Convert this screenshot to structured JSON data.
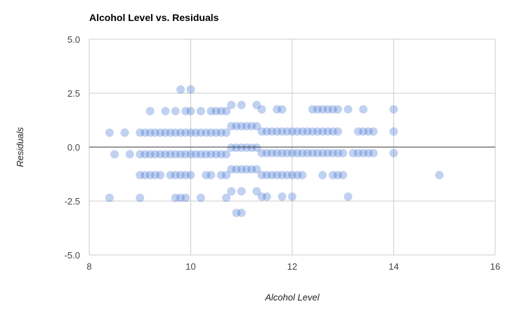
{
  "chart_data": {
    "type": "scatter",
    "title": "Alcohol Level vs. Residuals",
    "xlabel": "Alcohol Level",
    "ylabel": "Residuals",
    "xlim": [
      8,
      16
    ],
    "ylim": [
      -5,
      5
    ],
    "xticks": [
      "8",
      "10",
      "12",
      "14",
      "16"
    ],
    "yticks": [
      "5.0",
      "2.5",
      "0.0",
      "-2.5",
      "-5.0"
    ],
    "grid": true,
    "legend": "none",
    "colors": {
      "point": "#3366cc",
      "grid": "#cccccc",
      "zero_line": "#333333"
    },
    "series": [
      {
        "x_range_rows": [
          {
            "y": 0.67,
            "from": 9.0,
            "to": 10.7,
            "step": 0.1
          },
          {
            "y": 0.72,
            "from": 11.4,
            "to": 12.9,
            "step": 0.1
          },
          {
            "y": -0.33,
            "from": 9.0,
            "to": 10.7,
            "step": 0.1
          },
          {
            "y": -0.28,
            "from": 11.4,
            "to": 13.0,
            "step": 0.1
          },
          {
            "y": 0.97,
            "from": 10.8,
            "to": 11.3,
            "step": 0.1
          },
          {
            "y": -0.03,
            "from": 10.8,
            "to": 11.3,
            "step": 0.1
          },
          {
            "y": -1.03,
            "from": 10.8,
            "to": 11.3,
            "step": 0.1
          }
        ],
        "points": [
          [
            8.4,
            0.67
          ],
          [
            8.5,
            -0.33
          ],
          [
            8.7,
            0.67
          ],
          [
            8.8,
            -0.33
          ],
          [
            8.4,
            -2.35
          ],
          [
            9.0,
            -2.35
          ],
          [
            9.0,
            -1.3
          ],
          [
            9.1,
            -1.3
          ],
          [
            9.2,
            -1.3
          ],
          [
            9.3,
            -1.3
          ],
          [
            9.4,
            -1.3
          ],
          [
            9.6,
            -1.3
          ],
          [
            9.7,
            -1.3
          ],
          [
            9.8,
            -1.3
          ],
          [
            9.9,
            -1.3
          ],
          [
            10.0,
            -1.3
          ],
          [
            10.3,
            -1.3
          ],
          [
            10.4,
            -1.3
          ],
          [
            10.6,
            -1.3
          ],
          [
            10.7,
            -1.3
          ],
          [
            9.7,
            -2.35
          ],
          [
            9.8,
            -2.35
          ],
          [
            9.9,
            -2.35
          ],
          [
            10.2,
            -2.35
          ],
          [
            10.7,
            -2.35
          ],
          [
            9.2,
            1.67
          ],
          [
            9.5,
            1.67
          ],
          [
            9.7,
            1.67
          ],
          [
            9.9,
            1.67
          ],
          [
            10.0,
            1.67
          ],
          [
            10.2,
            1.67
          ],
          [
            10.4,
            1.67
          ],
          [
            10.5,
            1.67
          ],
          [
            10.6,
            1.67
          ],
          [
            10.7,
            1.67
          ],
          [
            9.8,
            2.67
          ],
          [
            10.0,
            2.67
          ],
          [
            10.8,
            1.95
          ],
          [
            11.0,
            1.95
          ],
          [
            11.3,
            1.95
          ],
          [
            11.4,
            1.75
          ],
          [
            11.7,
            1.75
          ],
          [
            11.8,
            1.75
          ],
          [
            12.4,
            1.75
          ],
          [
            12.5,
            1.75
          ],
          [
            12.6,
            1.75
          ],
          [
            12.7,
            1.75
          ],
          [
            12.8,
            1.75
          ],
          [
            12.9,
            1.75
          ],
          [
            13.1,
            1.75
          ],
          [
            13.4,
            1.75
          ],
          [
            14.0,
            1.75
          ],
          [
            10.8,
            -2.05
          ],
          [
            11.0,
            -2.05
          ],
          [
            11.3,
            -2.05
          ],
          [
            11.4,
            -2.3
          ],
          [
            11.5,
            -2.3
          ],
          [
            11.8,
            -2.3
          ],
          [
            12.0,
            -2.3
          ],
          [
            13.1,
            -2.3
          ],
          [
            10.9,
            -3.05
          ],
          [
            11.0,
            -3.05
          ],
          [
            11.4,
            -1.3
          ],
          [
            11.5,
            -1.3
          ],
          [
            11.6,
            -1.3
          ],
          [
            11.7,
            -1.3
          ],
          [
            11.8,
            -1.3
          ],
          [
            11.9,
            -1.3
          ],
          [
            12.0,
            -1.3
          ],
          [
            12.1,
            -1.3
          ],
          [
            12.2,
            -1.3
          ],
          [
            12.6,
            -1.3
          ],
          [
            12.8,
            -1.3
          ],
          [
            12.9,
            -1.3
          ],
          [
            13.0,
            -1.3
          ],
          [
            13.2,
            -0.28
          ],
          [
            13.3,
            -0.28
          ],
          [
            13.4,
            -0.28
          ],
          [
            13.5,
            -0.28
          ],
          [
            13.6,
            -0.28
          ],
          [
            14.0,
            -0.28
          ],
          [
            13.3,
            0.72
          ],
          [
            13.4,
            0.72
          ],
          [
            13.5,
            0.72
          ],
          [
            13.6,
            0.72
          ],
          [
            14.0,
            0.72
          ],
          [
            14.9,
            -1.3
          ]
        ]
      }
    ]
  }
}
